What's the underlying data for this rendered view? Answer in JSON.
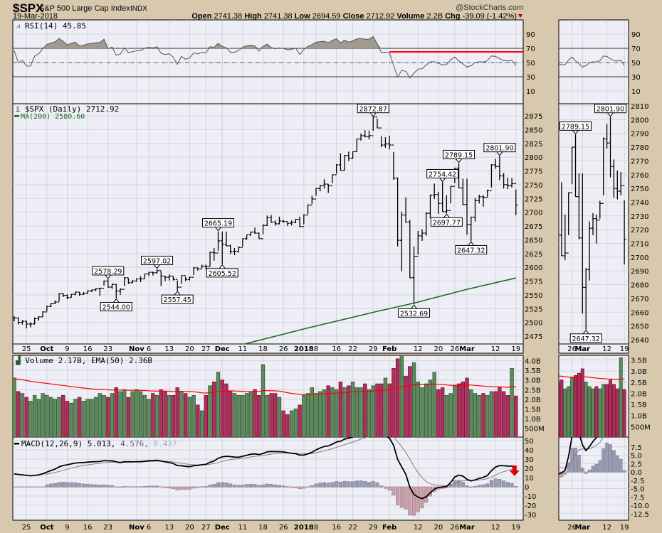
{
  "header": {
    "symbol": "$SPX",
    "name": "S&P 500 Large Cap Index",
    "exchange": "INDX",
    "date": "19-Mar-2018",
    "watermark": "@StockCharts.com",
    "open_label": "Open",
    "open": "2741.38",
    "high_label": "High",
    "high": "2741.38",
    "low_label": "Low",
    "low": "2694.59",
    "close_label": "Close",
    "close": "2712.92",
    "volume_label": "Volume",
    "volume": "2.2B",
    "chg_label": "Chg",
    "chg": "-39.09 (-1.42%)",
    "chg_direction": "down"
  },
  "panels": {
    "rsi_label": "RSI(14) 45.85",
    "price_label": "$SPX (Daily) 2712.92",
    "ma_label": "MA(200) 2580.60",
    "volume_label": "Volume 2.17B, EMA(50) 2.36B",
    "macd_label": "MACD(12,26,9) 5.013,",
    "macd_signal": "4.576,",
    "macd_hist": "0.437"
  },
  "colors": {
    "background": "#d8c8ae",
    "plot": "#eeeef6",
    "ma200": "#1a6e1a",
    "volume_up": "#5f8a5f",
    "volume_down": "#a8325a",
    "volume_ema": "#ff0000",
    "rsi_annotation": "#ff0000",
    "macd_line": "#000000",
    "signal_line": "#8a7a7a",
    "hist_pos": "#9a9ab0",
    "hist_neg": "#c8a0aa",
    "arrow": "#e00000"
  },
  "chart_data": {
    "type": "ohlc-bar",
    "title": "$SPX (Daily)",
    "x_ticks": [
      {
        "i": 3,
        "label": "25"
      },
      {
        "i": 8,
        "label": "Oct",
        "bold": true
      },
      {
        "i": 13,
        "label": "9"
      },
      {
        "i": 18,
        "label": "16"
      },
      {
        "i": 23,
        "label": "23"
      },
      {
        "i": 30,
        "label": "Nov",
        "bold": true
      },
      {
        "i": 33,
        "label": "6"
      },
      {
        "i": 38,
        "label": "13"
      },
      {
        "i": 43,
        "label": "20"
      },
      {
        "i": 47,
        "label": "27"
      },
      {
        "i": 51,
        "label": "Dec",
        "bold": true
      },
      {
        "i": 56,
        "label": "11"
      },
      {
        "i": 61,
        "label": "18"
      },
      {
        "i": 66,
        "label": "26"
      },
      {
        "i": 71,
        "label": "2018",
        "bold": true
      },
      {
        "i": 74,
        "label": "8"
      },
      {
        "i": 79,
        "label": "16"
      },
      {
        "i": 83,
        "label": "22"
      },
      {
        "i": 88,
        "label": "29"
      },
      {
        "i": 92,
        "label": "Feb",
        "bold": true
      },
      {
        "i": 99,
        "label": "12"
      },
      {
        "i": 104,
        "label": "20"
      },
      {
        "i": 108,
        "label": "26"
      },
      {
        "i": 111,
        "label": "Mar",
        "bold": true
      },
      {
        "i": 118,
        "label": "12"
      },
      {
        "i": 123,
        "label": "19"
      }
    ],
    "mini_x_ticks": [
      {
        "i": 108,
        "label": "26"
      },
      {
        "i": 111,
        "label": "Mar",
        "bold": true
      },
      {
        "i": 118,
        "label": "12"
      },
      {
        "i": 123,
        "label": "19"
      }
    ],
    "price_ticks": [
      2875,
      2850,
      2825,
      2800,
      2775,
      2750,
      2725,
      2700,
      2675,
      2650,
      2625,
      2600,
      2575,
      2550,
      2525,
      2500,
      2475
    ],
    "price_ylim": [
      2465,
      2880
    ],
    "mini_price_ticks": [
      2810,
      2800,
      2790,
      2780,
      2770,
      2760,
      2750,
      2740,
      2730,
      2720,
      2710,
      2700,
      2690,
      2680,
      2670,
      2660,
      2650,
      2640
    ],
    "mini_start_index": 104,
    "rsi_ticks": [
      90,
      70,
      50,
      30,
      10
    ],
    "rsi_annotation": {
      "level": 65,
      "from_index": 92
    },
    "volume_ticks": [
      {
        "v": 4.0,
        "label": "4.0B"
      },
      {
        "v": 3.5,
        "label": "3.5B"
      },
      {
        "v": 3.0,
        "label": "3.0B"
      },
      {
        "v": 2.5,
        "label": "2.5B"
      },
      {
        "v": 2.0,
        "label": "2.0B"
      },
      {
        "v": 1.5,
        "label": "1.5B"
      },
      {
        "v": 1.0,
        "label": "1.0B"
      },
      {
        "v": 0.5,
        "label": "500M"
      }
    ],
    "mini_volume_ticks": [
      {
        "v": 3.5,
        "label": "3.5B"
      },
      {
        "v": 3.0,
        "label": "3.0B"
      },
      {
        "v": 2.5,
        "label": "2.5B"
      },
      {
        "v": 2.0,
        "label": "2.0B"
      },
      {
        "v": 1.5,
        "label": "1.5B"
      },
      {
        "v": 1.0,
        "label": "1.0B"
      },
      {
        "v": 0.5,
        "label": "500M"
      }
    ],
    "macd_ticks": [
      50,
      40,
      30,
      20,
      10,
      0,
      -10,
      -20,
      -30
    ],
    "mini_macd_ticks": [
      "7.5",
      "5.0",
      "2.5",
      "0.0",
      "-2.5",
      "-5.0",
      "-7.5",
      "-10.0",
      "-12.5"
    ],
    "annotations": [
      {
        "i": 23,
        "value": "2578.29",
        "type": "high"
      },
      {
        "i": 25,
        "value": "2544.00",
        "type": "low"
      },
      {
        "i": 35,
        "value": "2597.02",
        "type": "high"
      },
      {
        "i": 40,
        "value": "2557.45",
        "type": "low"
      },
      {
        "i": 50,
        "value": "2665.19",
        "type": "high"
      },
      {
        "i": 51,
        "value": "2605.52",
        "type": "low"
      },
      {
        "i": 88,
        "value": "2872.87",
        "type": "high"
      },
      {
        "i": 98,
        "value": "2532.69",
        "type": "low"
      },
      {
        "i": 105,
        "value": "2754.42",
        "type": "high"
      },
      {
        "i": 106,
        "value": "2697.77",
        "type": "low"
      },
      {
        "i": 109,
        "value": "2789.15",
        "type": "high"
      },
      {
        "i": 119,
        "value": "2801.90",
        "type": "high"
      },
      {
        "i": 112,
        "value": "2647.32",
        "type": "low"
      }
    ],
    "mini_annotations": [
      {
        "i": 109,
        "value": "2789.15",
        "type": "high"
      },
      {
        "i": 119,
        "value": "2801.90",
        "type": "high"
      },
      {
        "i": 112,
        "value": "2647.32",
        "type": "low"
      }
    ],
    "ma200": [
      {
        "i": 55,
        "v": 2458
      },
      {
        "i": 71,
        "v": 2488
      },
      {
        "i": 89,
        "v": 2520
      },
      {
        "i": 98,
        "v": 2535
      },
      {
        "i": 111,
        "v": 2560
      },
      {
        "i": 123,
        "v": 2580.6
      }
    ],
    "close": [
      2508,
      2500,
      2502,
      2497,
      2497,
      2507,
      2510,
      2519,
      2529,
      2534,
      2537,
      2552,
      2549,
      2545,
      2551,
      2555,
      2551,
      2553,
      2557,
      2559,
      2561,
      2562,
      2575,
      2564,
      2569,
      2557,
      2560,
      2581,
      2572,
      2575,
      2579,
      2579,
      2588,
      2591,
      2590,
      2594,
      2584,
      2582,
      2584,
      2578,
      2564,
      2585,
      2578,
      2582,
      2599,
      2597,
      2602,
      2601,
      2627,
      2626,
      2648,
      2642,
      2639,
      2629,
      2629,
      2636,
      2652,
      2659,
      2664,
      2662,
      2652,
      2676,
      2690,
      2682,
      2679,
      2684,
      2683,
      2680,
      2682,
      2687,
      2674,
      2695,
      2713,
      2724,
      2743,
      2748,
      2751,
      2748,
      2768,
      2786,
      2776,
      2803,
      2798,
      2810,
      2833,
      2839,
      2837,
      2839,
      2873,
      2853,
      2822,
      2824,
      2822,
      2762,
      2649,
      2695,
      2682,
      2581,
      2620,
      2657,
      2662,
      2698,
      2731,
      2732,
      2716,
      2701,
      2703,
      2747,
      2780,
      2744,
      2714,
      2678,
      2691,
      2721,
      2728,
      2727,
      2739,
      2786,
      2783,
      2766,
      2750,
      2748,
      2752,
      2712.92
    ],
    "high": [
      2511,
      2509,
      2504,
      2503,
      2500,
      2509,
      2511,
      2520,
      2530,
      2535,
      2540,
      2553,
      2553,
      2551,
      2552,
      2556,
      2555,
      2555,
      2558,
      2559,
      2562,
      2563,
      2576,
      2578.29,
      2570,
      2570,
      2562,
      2582,
      2580,
      2577,
      2580,
      2584,
      2588,
      2591,
      2592,
      2597.02,
      2593,
      2584,
      2587,
      2584,
      2576,
      2585,
      2583,
      2583,
      2600,
      2599,
      2605,
      2605,
      2628,
      2635,
      2665.19,
      2665,
      2665,
      2641,
      2635,
      2638,
      2652,
      2659,
      2665,
      2672,
      2663,
      2678,
      2694,
      2695,
      2685,
      2692,
      2686,
      2682,
      2685,
      2688,
      2692,
      2696,
      2714,
      2730,
      2744,
      2749,
      2760,
      2751,
      2768,
      2787,
      2807,
      2804,
      2810,
      2810,
      2833,
      2843,
      2849,
      2848,
      2872.87,
      2870,
      2838,
      2836,
      2839,
      2809,
      2763,
      2701,
      2727,
      2686,
      2638,
      2666,
      2669,
      2700,
      2732,
      2752,
      2737,
      2754.42,
      2731,
      2747,
      2780,
      2789.15,
      2761,
      2761,
      2692,
      2726,
      2732,
      2731,
      2741,
      2787,
      2797,
      2801.9,
      2771,
      2763,
      2762,
      2741.38
    ],
    "low": [
      2502,
      2496,
      2496,
      2489,
      2491,
      2496,
      2503,
      2510,
      2520,
      2528,
      2533,
      2538,
      2546,
      2542,
      2545,
      2549,
      2548,
      2550,
      2552,
      2555,
      2557,
      2548,
      2567,
      2563,
      2561,
      2544.0,
      2550,
      2566,
      2570,
      2571,
      2574,
      2573,
      2580,
      2584,
      2585,
      2589,
      2566,
      2575,
      2576,
      2576,
      2557.45,
      2570,
      2575,
      2576,
      2586,
      2594,
      2598,
      2596,
      2602,
      2612,
      2630,
      2605.52,
      2638,
      2624,
      2622,
      2627,
      2638,
      2650,
      2657,
      2661,
      2652,
      2660,
      2675,
      2681,
      2676,
      2678,
      2681,
      2675,
      2676,
      2680,
      2673,
      2678,
      2697,
      2715,
      2730,
      2738,
      2743,
      2735,
      2753,
      2770,
      2776,
      2776,
      2793,
      2797,
      2810,
      2830,
      2836,
      2832,
      2848,
      2853,
      2818,
      2817,
      2814,
      2759,
      2638,
      2593,
      2681,
      2580,
      2532.69,
      2623,
      2648,
      2657,
      2689,
      2724,
      2697,
      2701,
      2697.77,
      2716,
      2753,
      2744,
      2713,
      2659,
      2647.32,
      2683,
      2716,
      2710,
      2728,
      2745,
      2779,
      2758,
      2743,
      2742,
      2745,
      2694.59
    ],
    "volume_b": [
      3.1,
      2.4,
      2.3,
      2.1,
      1.9,
      2.2,
      2.0,
      2.3,
      2.2,
      2.1,
      2.0,
      2.1,
      2.2,
      1.9,
      1.8,
      2.0,
      2.1,
      1.9,
      2.0,
      2.0,
      2.1,
      2.3,
      2.2,
      2.1,
      2.3,
      2.6,
      2.4,
      2.5,
      2.1,
      2.4,
      2.5,
      2.4,
      2.2,
      2.0,
      2.3,
      2.2,
      2.5,
      2.4,
      2.2,
      2.2,
      2.6,
      2.4,
      2.3,
      2.1,
      2.2,
      1.7,
      1.4,
      2.2,
      2.7,
      2.9,
      3.4,
      3.0,
      2.8,
      2.4,
      2.3,
      2.2,
      2.2,
      2.3,
      2.4,
      2.5,
      2.2,
      3.8,
      2.2,
      2.3,
      2.3,
      2.1,
      1.4,
      1.2,
      1.4,
      1.5,
      1.7,
      2.2,
      2.3,
      2.6,
      2.3,
      2.4,
      2.5,
      2.7,
      2.6,
      2.5,
      2.9,
      2.6,
      2.7,
      2.9,
      2.6,
      2.6,
      2.8,
      2.5,
      2.7,
      2.8,
      2.8,
      3.1,
      2.8,
      3.6,
      4.1,
      4.3,
      3.2,
      3.7,
      3.9,
      2.9,
      2.6,
      2.8,
      3.0,
      3.4,
      2.5,
      2.6,
      2.2,
      2.3,
      2.7,
      2.8,
      2.9,
      3.1,
      2.5,
      2.3,
      2.2,
      2.3,
      2.2,
      2.4,
      2.4,
      2.6,
      2.4,
      2.2,
      3.6,
      2.17
    ]
  }
}
